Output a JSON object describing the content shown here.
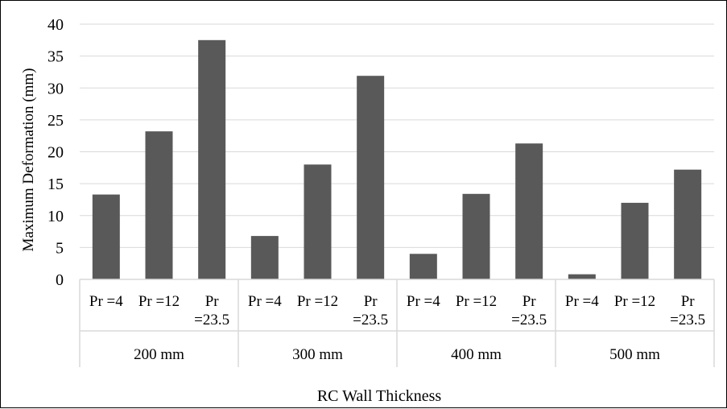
{
  "chart_data": {
    "type": "bar",
    "xlabel": "RC Wall Thickness",
    "ylabel": "Maximum Deformation (mm)",
    "ylim": [
      0,
      40
    ],
    "yticks": [
      0,
      5,
      10,
      15,
      20,
      25,
      30,
      35,
      40
    ],
    "grid": true,
    "legend": "none",
    "bar_color": "#595959",
    "grid_color": "#d9d9d9",
    "groups": [
      {
        "label": "200 mm",
        "bars": [
          {
            "label_lines": [
              "Pr =4"
            ],
            "value": 13.3
          },
          {
            "label_lines": [
              "Pr =12"
            ],
            "value": 23.2
          },
          {
            "label_lines": [
              "Pr",
              "=23.5"
            ],
            "value": 37.5
          }
        ]
      },
      {
        "label": "300 mm",
        "bars": [
          {
            "label_lines": [
              "Pr =4"
            ],
            "value": 6.8
          },
          {
            "label_lines": [
              "Pr =12"
            ],
            "value": 18.0
          },
          {
            "label_lines": [
              "Pr",
              "=23.5"
            ],
            "value": 31.9
          }
        ]
      },
      {
        "label": "400 mm",
        "bars": [
          {
            "label_lines": [
              "Pr =4"
            ],
            "value": 4.0
          },
          {
            "label_lines": [
              "Pr =12"
            ],
            "value": 13.4
          },
          {
            "label_lines": [
              "Pr",
              "=23.5"
            ],
            "value": 21.3
          }
        ]
      },
      {
        "label": "500 mm",
        "bars": [
          {
            "label_lines": [
              "Pr =4"
            ],
            "value": 0.8
          },
          {
            "label_lines": [
              "Pr =12"
            ],
            "value": 12.0
          },
          {
            "label_lines": [
              "Pr",
              "=23.5"
            ],
            "value": 17.2
          }
        ]
      }
    ]
  }
}
